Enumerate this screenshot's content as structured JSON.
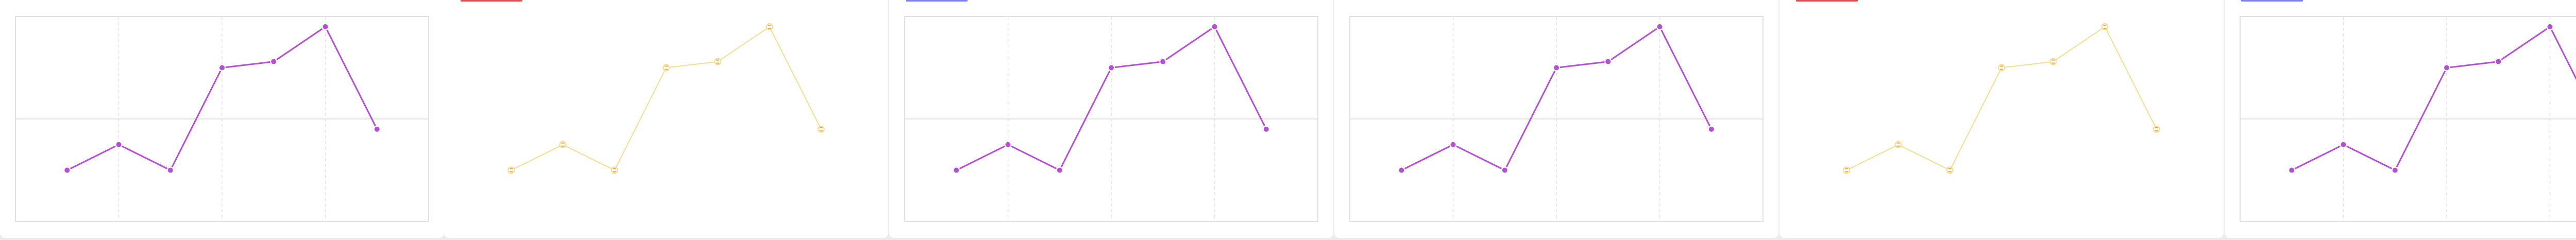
{
  "colors": {
    "background": "#ececec",
    "panel": "#ffffff",
    "frame": "#d7d7d7",
    "grid_major": "#d8d8d8",
    "grid_minor": "#e3e3e3",
    "series_purple": "#b64fd6",
    "series_yellow": "#f2de8e",
    "marker_orange": "#f0a23c",
    "tab_red": "#e05050",
    "tab_blue": "#7e7ff0"
  },
  "panels": [
    {
      "id": "panel-1",
      "style": "purple",
      "tab": "none"
    },
    {
      "id": "panel-2",
      "style": "yellow",
      "tab": "red"
    },
    {
      "id": "panel-3",
      "style": "purple",
      "tab": "blue"
    },
    {
      "id": "panel-4",
      "style": "purple",
      "tab": "none"
    },
    {
      "id": "panel-5",
      "style": "yellow",
      "tab": "red"
    },
    {
      "id": "panel-6",
      "style": "purple",
      "tab": "blue"
    }
  ],
  "chart_data": {
    "type": "line",
    "title": "",
    "xlabel": "",
    "ylabel": "",
    "x": [
      1,
      2,
      3,
      4,
      5,
      6,
      7
    ],
    "series": [
      {
        "values": [
          2.5,
          3.75,
          2.5,
          7.5,
          7.8,
          9.5,
          4.5
        ]
      }
    ],
    "xlim": [
      0,
      8
    ],
    "ylim": [
      0,
      10
    ],
    "grid": true,
    "legend": "none"
  }
}
